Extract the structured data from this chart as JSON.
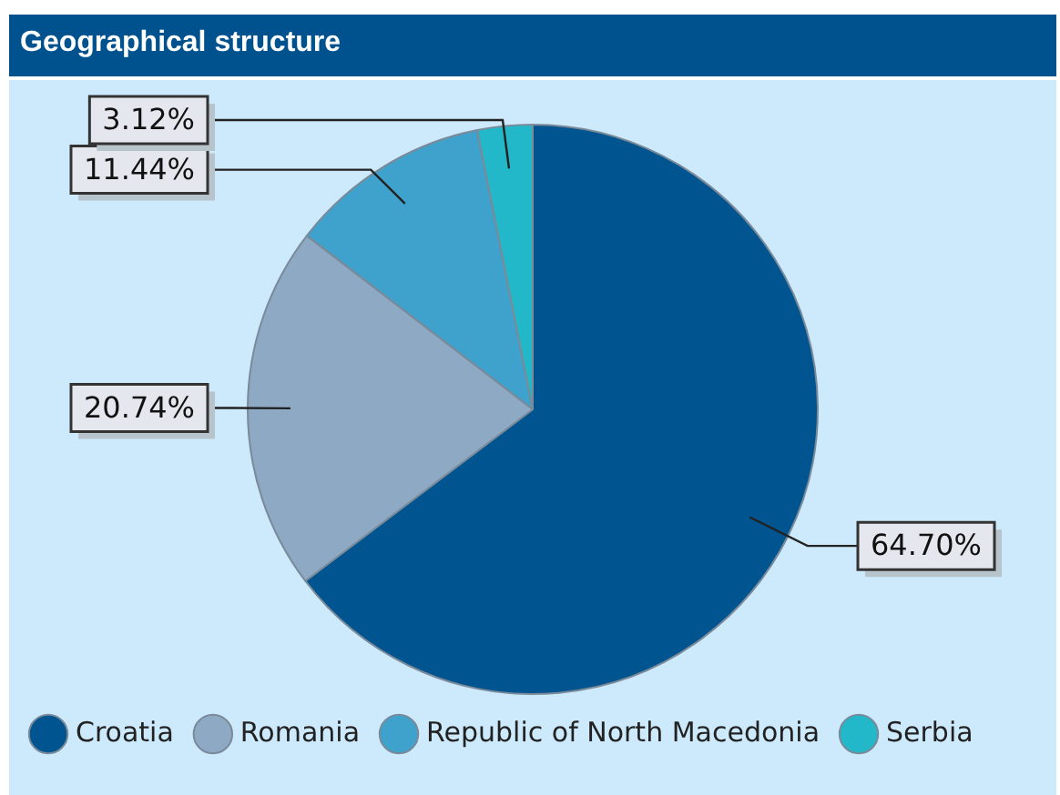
{
  "chart_data": {
    "type": "pie",
    "title": "Geographical structure",
    "categories": [
      "Croatia",
      "Romania",
      "Republic of North Macedonia",
      "Serbia"
    ],
    "values": [
      64.7,
      20.74,
      11.44,
      3.12
    ],
    "colors": [
      "#00548f",
      "#8ea9c4",
      "#3fa2cc",
      "#23b8c9"
    ],
    "value_labels": [
      "64.70%",
      "20.74%",
      "11.44%",
      "3.12%"
    ],
    "legend": "bottom"
  }
}
